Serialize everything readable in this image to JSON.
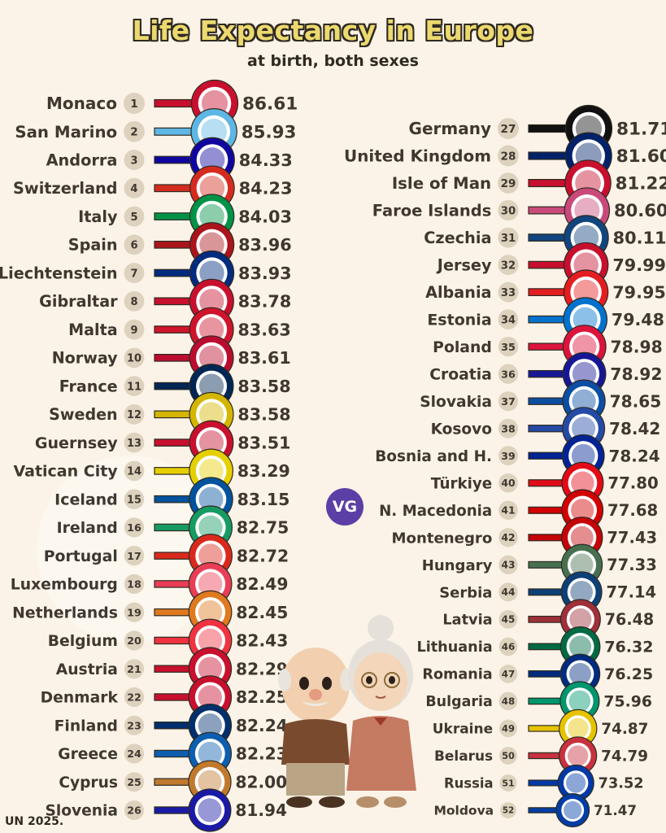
{
  "header": {
    "title": "Life Expectancy in Europe",
    "subtitle": "at birth, both sexes"
  },
  "logo": {
    "text": "VG",
    "color": "#5b3fa6"
  },
  "source": "UN 2025.",
  "chart_data": {
    "type": "table",
    "title": "Life Expectancy in Europe",
    "subtitle": "at birth, both sexes",
    "unit": "years",
    "rows": [
      {
        "rank": "1",
        "country": "Monaco",
        "value": "86.61",
        "color": "#c8102e",
        "flag": "monaco-flag-icon"
      },
      {
        "rank": "2",
        "country": "San Marino",
        "value": "85.93",
        "color": "#5eb6e4",
        "flag": "san-marino-flag-icon"
      },
      {
        "rank": "3",
        "country": "Andorra",
        "value": "84.33",
        "color": "#10069f",
        "flag": "andorra-flag-icon"
      },
      {
        "rank": "4",
        "country": "Switzerland",
        "value": "84.23",
        "color": "#d52b1e",
        "flag": "switzerland-flag-icon"
      },
      {
        "rank": "5",
        "country": "Italy",
        "value": "84.03",
        "color": "#009246",
        "flag": "italy-flag-icon"
      },
      {
        "rank": "6",
        "country": "Spain",
        "value": "83.96",
        "color": "#aa151b",
        "flag": "spain-flag-icon"
      },
      {
        "rank": "7",
        "country": "Liechtenstein",
        "value": "83.93",
        "color": "#002b7f",
        "flag": "liechtenstein-flag-icon"
      },
      {
        "rank": "8",
        "country": "Gibraltar",
        "value": "83.78",
        "color": "#c8102e",
        "flag": "gibraltar-flag-icon"
      },
      {
        "rank": "9",
        "country": "Malta",
        "value": "83.63",
        "color": "#cf142b",
        "flag": "malta-flag-icon"
      },
      {
        "rank": "10",
        "country": "Norway",
        "value": "83.61",
        "color": "#ba0c2f",
        "flag": "norway-flag-icon"
      },
      {
        "rank": "11",
        "country": "France",
        "value": "83.58",
        "color": "#002654",
        "flag": "france-flag-icon"
      },
      {
        "rank": "12",
        "country": "Sweden",
        "value": "83.58",
        "color": "#d4b600",
        "flag": "sweden-flag-icon"
      },
      {
        "rank": "13",
        "country": "Guernsey",
        "value": "83.51",
        "color": "#c8102e",
        "flag": "guernsey-flag-icon"
      },
      {
        "rank": "14",
        "country": "Vatican City",
        "value": "83.29",
        "color": "#e6cf00",
        "flag": "vatican-flag-icon"
      },
      {
        "rank": "15",
        "country": "Iceland",
        "value": "83.15",
        "color": "#02529c",
        "flag": "iceland-flag-icon"
      },
      {
        "rank": "16",
        "country": "Ireland",
        "value": "82.75",
        "color": "#169b62",
        "flag": "ireland-flag-icon"
      },
      {
        "rank": "17",
        "country": "Portugal",
        "value": "82.72",
        "color": "#da291c",
        "flag": "portugal-flag-icon"
      },
      {
        "rank": "18",
        "country": "Luxembourg",
        "value": "82.49",
        "color": "#ea3d56",
        "flag": "luxembourg-flag-icon"
      },
      {
        "rank": "19",
        "country": "Netherlands",
        "value": "82.45",
        "color": "#e07a1f",
        "flag": "netherlands-flag-icon"
      },
      {
        "rank": "20",
        "country": "Belgium",
        "value": "82.43",
        "color": "#ef3340",
        "flag": "belgium-flag-icon"
      },
      {
        "rank": "21",
        "country": "Austria",
        "value": "82.29",
        "color": "#c8102e",
        "flag": "austria-flag-icon"
      },
      {
        "rank": "22",
        "country": "Denmark",
        "value": "82.25",
        "color": "#c8102e",
        "flag": "denmark-flag-icon"
      },
      {
        "rank": "23",
        "country": "Finland",
        "value": "82.24",
        "color": "#002f6c",
        "flag": "finland-flag-icon"
      },
      {
        "rank": "24",
        "country": "Greece",
        "value": "82.23",
        "color": "#0d5eaf",
        "flag": "greece-flag-icon"
      },
      {
        "rank": "25",
        "country": "Cyprus",
        "value": "82.00",
        "color": "#c07a2e",
        "flag": "cyprus-flag-icon"
      },
      {
        "rank": "26",
        "country": "Slovenia",
        "value": "81.94",
        "color": "#1a1aa6",
        "flag": "slovenia-flag-icon"
      },
      {
        "rank": "27",
        "country": "Germany",
        "value": "81.71",
        "color": "#111111",
        "flag": "germany-flag-icon"
      },
      {
        "rank": "28",
        "country": "United Kingdom",
        "value": "81.60",
        "color": "#012169",
        "flag": "uk-flag-icon"
      },
      {
        "rank": "29",
        "country": "Isle of Man",
        "value": "81.22",
        "color": "#c8102e",
        "flag": "isle-of-man-flag-icon"
      },
      {
        "rank": "30",
        "country": "Faroe Islands",
        "value": "80.60",
        "color": "#c94a7a",
        "flag": "faroe-flag-icon"
      },
      {
        "rank": "31",
        "country": "Czechia",
        "value": "80.11",
        "color": "#11457e",
        "flag": "czechia-flag-icon"
      },
      {
        "rank": "32",
        "country": "Jersey",
        "value": "79.99",
        "color": "#c8102e",
        "flag": "jersey-flag-icon"
      },
      {
        "rank": "33",
        "country": "Albania",
        "value": "79.95",
        "color": "#e41e20",
        "flag": "albania-flag-icon"
      },
      {
        "rank": "34",
        "country": "Estonia",
        "value": "79.48",
        "color": "#0072ce",
        "flag": "estonia-flag-icon"
      },
      {
        "rank": "35",
        "country": "Poland",
        "value": "78.98",
        "color": "#dc143c",
        "flag": "poland-flag-icon"
      },
      {
        "rank": "36",
        "country": "Croatia",
        "value": "78.92",
        "color": "#171796",
        "flag": "croatia-flag-icon"
      },
      {
        "rank": "37",
        "country": "Slovakia",
        "value": "78.65",
        "color": "#0b4ea2",
        "flag": "slovakia-flag-icon"
      },
      {
        "rank": "38",
        "country": "Kosovo",
        "value": "78.42",
        "color": "#244aa5",
        "flag": "kosovo-flag-icon"
      },
      {
        "rank": "39",
        "country": "Bosnia and H.",
        "value": "78.24",
        "color": "#002395",
        "flag": "bosnia-flag-icon"
      },
      {
        "rank": "40",
        "country": "Türkiye",
        "value": "77.80",
        "color": "#e30a17",
        "flag": "turkiye-flag-icon"
      },
      {
        "rank": "41",
        "country": "N. Macedonia",
        "value": "77.68",
        "color": "#d20000",
        "flag": "north-macedonia-flag-icon"
      },
      {
        "rank": "42",
        "country": "Montenegro",
        "value": "77.43",
        "color": "#c40308",
        "flag": "montenegro-flag-icon"
      },
      {
        "rank": "43",
        "country": "Hungary",
        "value": "77.33",
        "color": "#477050",
        "flag": "hungary-flag-icon"
      },
      {
        "rank": "44",
        "country": "Serbia",
        "value": "77.14",
        "color": "#0c4076",
        "flag": "serbia-flag-icon"
      },
      {
        "rank": "45",
        "country": "Latvia",
        "value": "76.48",
        "color": "#9e3039",
        "flag": "latvia-flag-icon"
      },
      {
        "rank": "46",
        "country": "Lithuania",
        "value": "76.32",
        "color": "#006a44",
        "flag": "lithuania-flag-icon"
      },
      {
        "rank": "47",
        "country": "Romania",
        "value": "76.25",
        "color": "#002b7f",
        "flag": "romania-flag-icon"
      },
      {
        "rank": "48",
        "country": "Bulgaria",
        "value": "75.96",
        "color": "#00966e",
        "flag": "bulgaria-flag-icon"
      },
      {
        "rank": "49",
        "country": "Ukraine",
        "value": "74.87",
        "color": "#e6c300",
        "flag": "ukraine-flag-icon"
      },
      {
        "rank": "50",
        "country": "Belarus",
        "value": "74.79",
        "color": "#c8313e",
        "flag": "belarus-flag-icon"
      },
      {
        "rank": "51",
        "country": "Russia",
        "value": "73.52",
        "color": "#0039a6",
        "flag": "russia-flag-icon"
      },
      {
        "rank": "52",
        "country": "Moldova",
        "value": "71.47",
        "color": "#003da5",
        "flag": "moldova-flag-icon"
      }
    ]
  }
}
